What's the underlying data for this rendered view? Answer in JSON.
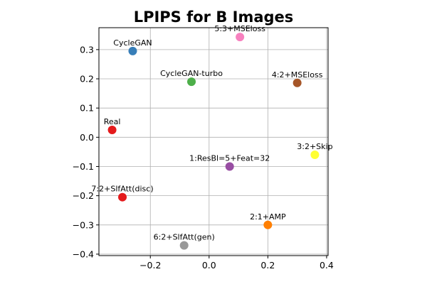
{
  "chart_data": {
    "type": "scatter",
    "title": "LPIPS for B Images",
    "xlabel": "",
    "ylabel": "",
    "xlim": [
      -0.375,
      0.405
    ],
    "ylim": [
      -0.405,
      0.375
    ],
    "grid": true,
    "xticks": [
      -0.2,
      0.0,
      0.2,
      0.4
    ],
    "xtick_labels": [
      "−0.2",
      "0.0",
      "0.2",
      "0.4"
    ],
    "yticks": [
      -0.4,
      -0.3,
      -0.2,
      -0.1,
      0.0,
      0.1,
      0.2,
      0.3
    ],
    "ytick_labels": [
      "−0.4",
      "−0.3",
      "−0.2",
      "−0.1",
      "0.0",
      "0.1",
      "0.2",
      "0.3"
    ],
    "points": [
      {
        "label": "CycleGAN",
        "x": -0.26,
        "y": 0.295,
        "color": "#377eb8"
      },
      {
        "label": "5:3+MSEloss",
        "x": 0.105,
        "y": 0.343,
        "color": "#f781bf"
      },
      {
        "label": "CycleGAN-turbo",
        "x": -0.06,
        "y": 0.19,
        "color": "#4daf4a"
      },
      {
        "label": "4:2+MSEloss",
        "x": 0.3,
        "y": 0.186,
        "color": "#a65628"
      },
      {
        "label": "Real",
        "x": -0.33,
        "y": 0.025,
        "color": "#e41a1c"
      },
      {
        "label": "3:2+Skip",
        "x": 0.36,
        "y": -0.06,
        "color": "#ffff33"
      },
      {
        "label": "1:ResBl=5+Feat=32",
        "x": 0.07,
        "y": -0.1,
        "color": "#984ea3"
      },
      {
        "label": "7:2+SlfAtt(disc)",
        "x": -0.295,
        "y": -0.205,
        "color": "#e41a1c"
      },
      {
        "label": "2:1+AMP",
        "x": 0.2,
        "y": -0.3,
        "color": "#ff7f00"
      },
      {
        "label": "6:2+SlfAtt(gen)",
        "x": -0.085,
        "y": -0.37,
        "color": "#999999"
      }
    ]
  }
}
